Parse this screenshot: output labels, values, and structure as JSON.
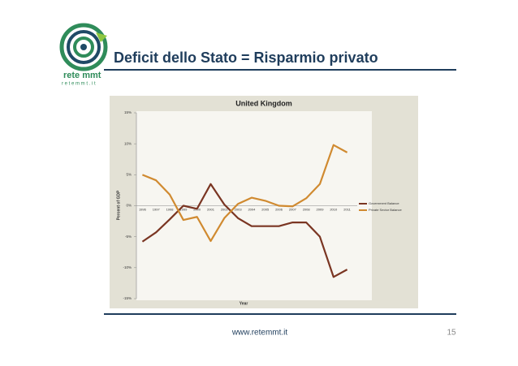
{
  "slide": {
    "title": "Deficit dello Stato = Risparmio privato",
    "logo_name": "rete mmt",
    "logo_url": "r e t e m m t . i t",
    "footer_url": "www.retemmt.it",
    "page_number": "15"
  },
  "chart_data": {
    "type": "line",
    "title": "United Kingdom",
    "x_label": "Year",
    "y_label": "Percent of GDP",
    "categories": [
      "1996",
      "1997",
      "1998",
      "1999",
      "2000",
      "2001",
      "2002",
      "2003",
      "2004",
      "2005",
      "2006",
      "2007",
      "2008",
      "2009",
      "2010",
      "2011"
    ],
    "series": [
      {
        "name": "Government Balance",
        "color": "#7a3522",
        "values": [
          -5.8,
          -4.3,
          -2.2,
          0,
          -0.5,
          3.5,
          0.2,
          -2.0,
          -3.3,
          -3.3,
          -3.3,
          -2.7,
          -2.7,
          -5.0,
          -11.5,
          -10.3
        ]
      },
      {
        "name": "Private Sector Balance",
        "color": "#d08a30",
        "values": [
          5.0,
          4.1,
          1.8,
          -2.3,
          -1.8,
          -5.7,
          -2.0,
          0.3,
          1.3,
          0.8,
          0,
          -0.1,
          1.2,
          3.5,
          9.8,
          8.6
        ]
      }
    ],
    "ylim": [
      -15,
      15
    ],
    "yticks": [
      {
        "value": 15,
        "label": "15%"
      },
      {
        "value": 10,
        "label": "10%"
      },
      {
        "value": 5,
        "label": "5%"
      },
      {
        "value": 0,
        "label": "0%"
      },
      {
        "value": -5,
        "label": "-5%"
      },
      {
        "value": -10,
        "label": "-10%"
      },
      {
        "value": -15,
        "label": "-15%"
      }
    ],
    "grid": false,
    "legend": "right"
  }
}
